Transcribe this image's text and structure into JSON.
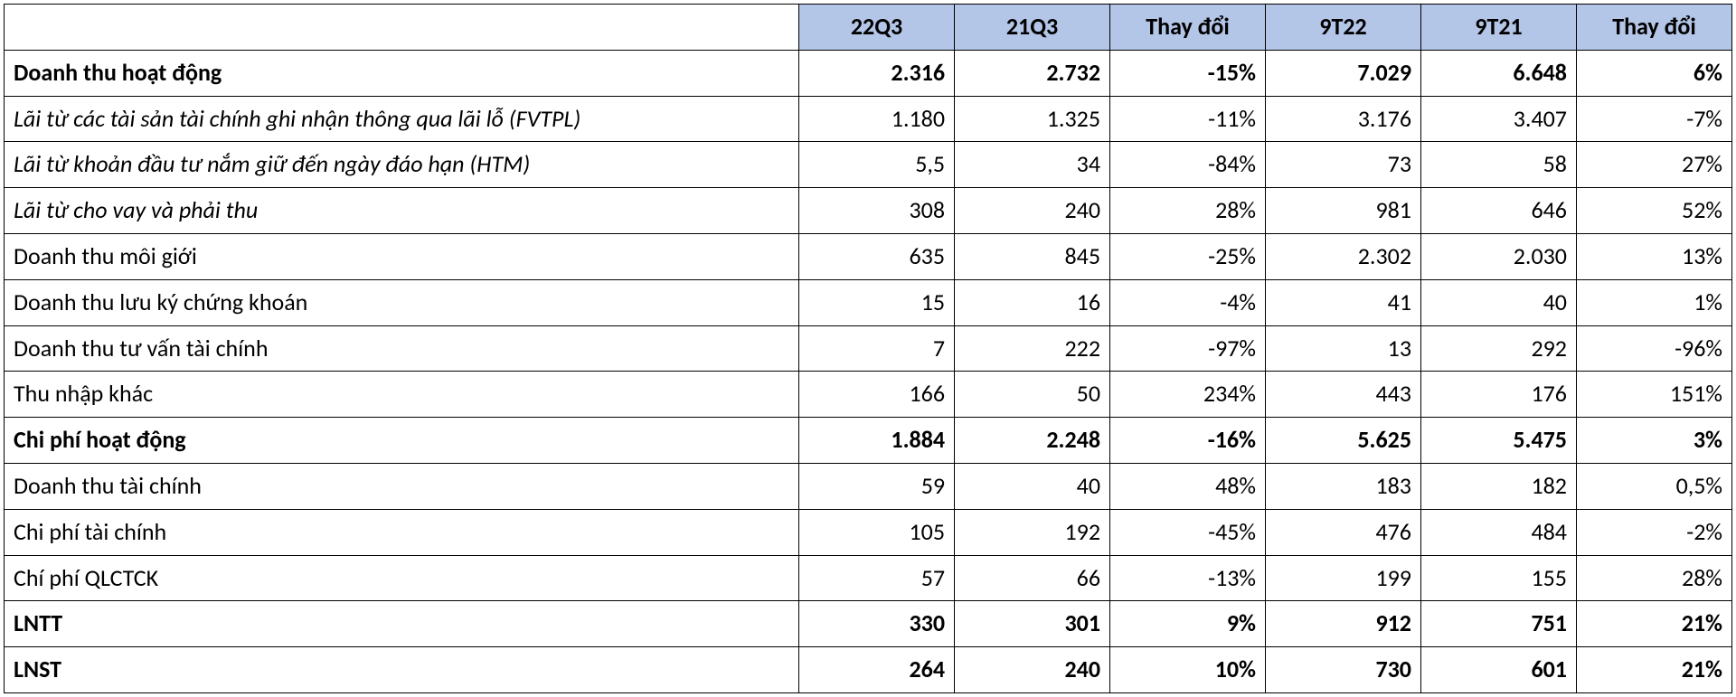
{
  "table": {
    "header_bg": "#b4c6e7",
    "border_color": "#000000",
    "columns": [
      "",
      "22Q3",
      "21Q3",
      "Thay đổi",
      "9T22",
      "9T21",
      "Thay đổi"
    ],
    "col_widths_pct": [
      46,
      9,
      9,
      9,
      9,
      9,
      9
    ],
    "font_family": "Calibri",
    "header_fontsize": 26,
    "cell_fontsize": 26,
    "rows": [
      {
        "label": "Doanh thu hoạt động",
        "bold": true,
        "italic": false,
        "values": [
          "2.316",
          "2.732",
          "-15%",
          "7.029",
          "6.648",
          "6%"
        ]
      },
      {
        "label": "Lãi từ các tài sản tài chính ghi nhận thông qua lãi lỗ (FVTPL)",
        "bold": false,
        "italic": true,
        "values": [
          "1.180",
          "1.325",
          "-11%",
          "3.176",
          "3.407",
          "-7%"
        ]
      },
      {
        "label": "Lãi từ khoản đầu tư nắm giữ đến ngày đáo hạn (HTM)",
        "bold": false,
        "italic": true,
        "values": [
          "5,5",
          "34",
          "-84%",
          "73",
          "58",
          "27%"
        ]
      },
      {
        "label": "Lãi từ cho vay và phải thu",
        "bold": false,
        "italic": true,
        "values": [
          "308",
          "240",
          "28%",
          "981",
          "646",
          "52%"
        ]
      },
      {
        "label": "Doanh thu môi giới",
        "bold": false,
        "italic": false,
        "values": [
          "635",
          "845",
          "-25%",
          "2.302",
          "2.030",
          "13%"
        ]
      },
      {
        "label": "Doanh thu lưu ký chứng khoán",
        "bold": false,
        "italic": false,
        "values": [
          "15",
          "16",
          "-4%",
          "41",
          "40",
          "1%"
        ]
      },
      {
        "label": "Doanh thu tư vấn tài chính",
        "bold": false,
        "italic": false,
        "values": [
          "7",
          "222",
          "-97%",
          "13",
          "292",
          "-96%"
        ]
      },
      {
        "label": "Thu nhập khác",
        "bold": false,
        "italic": false,
        "values": [
          "166",
          "50",
          "234%",
          "443",
          "176",
          "151%"
        ]
      },
      {
        "label": "Chi phí hoạt động",
        "bold": true,
        "italic": false,
        "values": [
          "1.884",
          "2.248",
          "-16%",
          "5.625",
          "5.475",
          "3%"
        ]
      },
      {
        "label": "Doanh thu tài chính",
        "bold": false,
        "italic": false,
        "values": [
          "59",
          "40",
          "48%",
          "183",
          "182",
          "0,5%"
        ]
      },
      {
        "label": "Chi phí tài chính",
        "bold": false,
        "italic": false,
        "values": [
          "105",
          "192",
          "-45%",
          "476",
          "484",
          "-2%"
        ]
      },
      {
        "label": "Chí phí QLCTCK",
        "bold": false,
        "italic": false,
        "values": [
          "57",
          "66",
          "-13%",
          "199",
          "155",
          "28%"
        ]
      },
      {
        "label": "LNTT",
        "bold": true,
        "italic": false,
        "values": [
          "330",
          "301",
          "9%",
          "912",
          "751",
          "21%"
        ]
      },
      {
        "label": "LNST",
        "bold": true,
        "italic": false,
        "values": [
          "264",
          "240",
          "10%",
          "730",
          "601",
          "21%"
        ]
      }
    ]
  }
}
